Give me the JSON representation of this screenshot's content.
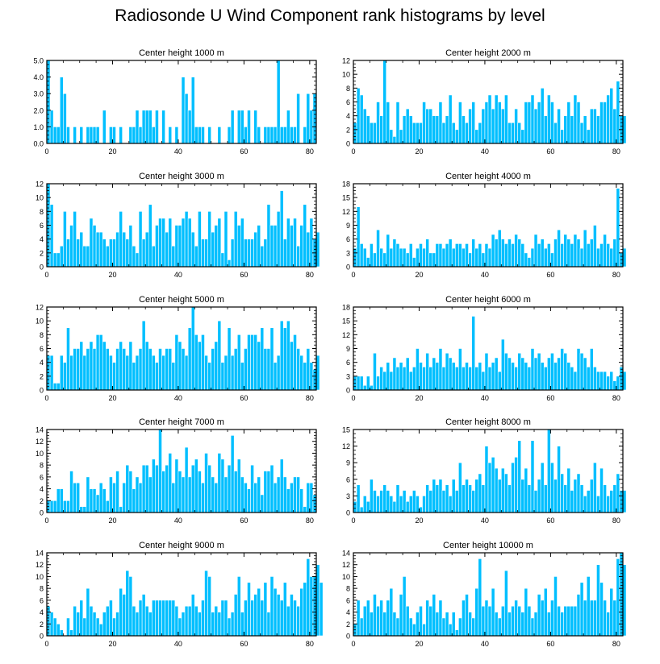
{
  "figure": {
    "title": "Radiosonde U Wind Component rank histograms by level",
    "bar_color": "#00bfff",
    "bar_outline": "#ffffff",
    "axis_color": "#000000"
  },
  "chart_data": [
    {
      "type": "bar",
      "title": "Center height 1000 m",
      "xlim": [
        0,
        82
      ],
      "ylim": [
        0,
        5
      ],
      "yticks": [
        0,
        1,
        2,
        3,
        4,
        5
      ],
      "ytick_labels": [
        "0.0",
        "1.0",
        "2.0",
        "3.0",
        "4.0",
        "5.0"
      ],
      "xticks": [
        0,
        20,
        40,
        60,
        80
      ],
      "values": [
        5,
        2,
        1,
        1,
        4,
        3,
        1,
        0,
        1,
        0,
        1,
        0,
        1,
        1,
        1,
        1,
        0,
        2,
        0,
        1,
        1,
        0,
        1,
        0,
        0,
        1,
        1,
        2,
        1,
        2,
        2,
        2,
        1,
        2,
        0,
        2,
        0,
        1,
        0,
        1,
        0,
        4,
        3,
        2,
        4,
        1,
        1,
        1,
        0,
        1,
        0,
        0,
        1,
        0,
        0,
        1,
        2,
        0,
        2,
        2,
        1,
        2,
        0,
        2,
        1,
        0,
        1,
        1,
        1,
        1,
        5,
        1,
        1,
        2,
        1,
        1,
        3,
        0,
        1,
        3,
        2,
        3
      ]
    },
    {
      "type": "bar",
      "title": "Center height 2000 m",
      "xlim": [
        0,
        82
      ],
      "ylim": [
        0,
        12
      ],
      "yticks": [
        0,
        2,
        4,
        6,
        8,
        10,
        12
      ],
      "ytick_labels": [
        "0",
        "2",
        "4",
        "6",
        "8",
        "10",
        "12"
      ],
      "xticks": [
        0,
        20,
        40,
        60,
        80
      ],
      "values": [
        3,
        8,
        7,
        5,
        4,
        3,
        3,
        6,
        4,
        12,
        6,
        2,
        1,
        6,
        2,
        4,
        5,
        4,
        3,
        3,
        3,
        6,
        5,
        5,
        4,
        4,
        6,
        3,
        4,
        7,
        3,
        2,
        6,
        4,
        3,
        5,
        6,
        2,
        3,
        5,
        6,
        7,
        5,
        7,
        6,
        5,
        7,
        3,
        3,
        5,
        3,
        2,
        6,
        6,
        7,
        5,
        6,
        8,
        4,
        7,
        6,
        3,
        5,
        2,
        4,
        6,
        4,
        7,
        6,
        3,
        4,
        2,
        5,
        5,
        4,
        6,
        6,
        7,
        8,
        5,
        9,
        4,
        4
      ]
    },
    {
      "type": "bar",
      "title": "Center height 3000 m",
      "xlim": [
        0,
        82
      ],
      "ylim": [
        0,
        12
      ],
      "yticks": [
        0,
        2,
        4,
        6,
        8,
        10,
        12
      ],
      "ytick_labels": [
        "0",
        "2",
        "4",
        "6",
        "8",
        "10",
        "12"
      ],
      "xticks": [
        0,
        20,
        40,
        60,
        80
      ],
      "values": [
        12,
        9,
        2,
        2,
        3,
        8,
        4,
        6,
        8,
        4,
        5,
        3,
        3,
        7,
        6,
        5,
        5,
        4,
        3,
        4,
        4,
        5,
        8,
        5,
        4,
        6,
        3,
        2,
        8,
        4,
        5,
        9,
        3,
        6,
        7,
        7,
        5,
        7,
        3,
        6,
        6,
        7,
        8,
        7,
        5,
        3,
        8,
        4,
        4,
        8,
        5,
        6,
        7,
        2,
        8,
        1,
        4,
        8,
        6,
        7,
        4,
        4,
        4,
        5,
        6,
        3,
        4,
        9,
        6,
        6,
        8,
        11,
        4,
        7,
        6,
        7,
        3,
        6,
        9,
        5,
        7,
        4,
        5
      ]
    },
    {
      "type": "bar",
      "title": "Center height 4000 m",
      "xlim": [
        0,
        82
      ],
      "ylim": [
        0,
        18
      ],
      "yticks": [
        0,
        3,
        6,
        9,
        12,
        15,
        18
      ],
      "ytick_labels": [
        "0",
        "3",
        "6",
        "9",
        "12",
        "15",
        "18"
      ],
      "xticks": [
        0,
        20,
        40,
        60,
        80
      ],
      "values": [
        4,
        13,
        5,
        4,
        2,
        5,
        3,
        8,
        4,
        3,
        7,
        4,
        6,
        5,
        4,
        4,
        3,
        5,
        2,
        4,
        5,
        4,
        6,
        3,
        3,
        5,
        5,
        4,
        5,
        6,
        4,
        5,
        5,
        4,
        5,
        3,
        6,
        4,
        5,
        3,
        5,
        4,
        7,
        6,
        8,
        6,
        5,
        6,
        5,
        7,
        6,
        5,
        3,
        2,
        4,
        7,
        5,
        6,
        4,
        5,
        3,
        6,
        8,
        5,
        7,
        6,
        5,
        7,
        6,
        4,
        8,
        5,
        6,
        9,
        4,
        5,
        7,
        5,
        4,
        6,
        17,
        3,
        4
      ]
    },
    {
      "type": "bar",
      "title": "Center height 5000 m",
      "xlim": [
        0,
        82
      ],
      "ylim": [
        0,
        12
      ],
      "yticks": [
        0,
        2,
        4,
        6,
        8,
        10,
        12
      ],
      "ytick_labels": [
        "0",
        "2",
        "4",
        "6",
        "8",
        "10",
        "12"
      ],
      "xticks": [
        0,
        20,
        40,
        60,
        80
      ],
      "values": [
        5,
        5,
        1,
        1,
        5,
        4,
        9,
        5,
        6,
        6,
        7,
        5,
        6,
        7,
        6,
        8,
        8,
        7,
        6,
        5,
        4,
        6,
        7,
        6,
        5,
        7,
        4,
        5,
        6,
        10,
        7,
        6,
        5,
        4,
        6,
        5,
        6,
        6,
        4,
        8,
        7,
        6,
        5,
        9,
        12,
        8,
        7,
        8,
        5,
        4,
        6,
        7,
        10,
        4,
        5,
        9,
        5,
        6,
        8,
        4,
        6,
        8,
        8,
        8,
        7,
        9,
        6,
        6,
        9,
        4,
        5,
        10,
        9,
        10,
        7,
        8,
        6,
        5,
        4,
        6,
        4,
        3,
        5
      ]
    },
    {
      "type": "bar",
      "title": "Center height 6000 m",
      "xlim": [
        0,
        82
      ],
      "ylim": [
        0,
        18
      ],
      "yticks": [
        0,
        3,
        6,
        9,
        12,
        15,
        18
      ],
      "ytick_labels": [
        "0",
        "3",
        "6",
        "9",
        "12",
        "15",
        "18"
      ],
      "xticks": [
        0,
        20,
        40,
        60,
        80
      ],
      "values": [
        3,
        3,
        3,
        1,
        3,
        1,
        8,
        3,
        5,
        4,
        6,
        4,
        7,
        5,
        6,
        5,
        7,
        4,
        5,
        9,
        6,
        5,
        8,
        5,
        7,
        6,
        9,
        5,
        8,
        7,
        6,
        5,
        9,
        5,
        6,
        5,
        16,
        5,
        6,
        4,
        8,
        5,
        6,
        7,
        4,
        11,
        8,
        7,
        6,
        5,
        8,
        7,
        6,
        5,
        9,
        7,
        8,
        6,
        5,
        7,
        8,
        6,
        7,
        9,
        8,
        6,
        5,
        4,
        9,
        8,
        7,
        5,
        9,
        5,
        4,
        4,
        4,
        3,
        4,
        2,
        3,
        5,
        4
      ]
    },
    {
      "type": "bar",
      "title": "Center height 7000 m",
      "xlim": [
        0,
        82
      ],
      "ylim": [
        0,
        14
      ],
      "yticks": [
        0,
        2,
        4,
        6,
        8,
        10,
        12,
        14
      ],
      "ytick_labels": [
        "0",
        "2",
        "4",
        "6",
        "8",
        "10",
        "12",
        "14"
      ],
      "xticks": [
        0,
        20,
        40,
        60,
        80
      ],
      "values": [
        2,
        2,
        2,
        4,
        4,
        2,
        2,
        7,
        5,
        5,
        1,
        1,
        6,
        4,
        4,
        3,
        5,
        4,
        2,
        6,
        5,
        7,
        1,
        5,
        8,
        7,
        4,
        6,
        5,
        8,
        8,
        6,
        9,
        8,
        14,
        7,
        8,
        10,
        5,
        9,
        7,
        6,
        11,
        6,
        8,
        9,
        7,
        5,
        10,
        8,
        6,
        5,
        10,
        9,
        6,
        8,
        13,
        7,
        9,
        6,
        5,
        4,
        8,
        5,
        6,
        3,
        7,
        7,
        8,
        5,
        6,
        9,
        6,
        4,
        5,
        6,
        6,
        4,
        1,
        5,
        5,
        3
      ]
    },
    {
      "type": "bar",
      "title": "Center height 8000 m",
      "xlim": [
        0,
        82
      ],
      "ylim": [
        0,
        15
      ],
      "yticks": [
        0,
        3,
        6,
        9,
        12,
        15
      ],
      "ytick_labels": [
        "0",
        "3",
        "6",
        "9",
        "12",
        "15"
      ],
      "xticks": [
        0,
        20,
        40,
        60,
        80
      ],
      "values": [
        2,
        5,
        1,
        3,
        2,
        6,
        4,
        3,
        4,
        5,
        4,
        3,
        2,
        5,
        3,
        4,
        2,
        3,
        4,
        3,
        1,
        3,
        5,
        4,
        6,
        5,
        6,
        4,
        5,
        3,
        6,
        4,
        9,
        5,
        6,
        5,
        4,
        6,
        7,
        5,
        12,
        9,
        10,
        8,
        6,
        8,
        7,
        5,
        9,
        10,
        13,
        6,
        8,
        5,
        13,
        4,
        6,
        9,
        5,
        15,
        9,
        6,
        12,
        7,
        5,
        8,
        4,
        6,
        7,
        5,
        3,
        4,
        6,
        9,
        3,
        8,
        5,
        3,
        4,
        5,
        7,
        4,
        4
      ]
    },
    {
      "type": "bar",
      "title": "Center height 9000 m",
      "xlim": [
        0,
        82
      ],
      "ylim": [
        0,
        14
      ],
      "yticks": [
        0,
        2,
        4,
        6,
        8,
        10,
        12,
        14
      ],
      "ytick_labels": [
        "0",
        "2",
        "4",
        "6",
        "8",
        "10",
        "12",
        "14"
      ],
      "xticks": [
        0,
        20,
        40,
        60,
        80
      ],
      "values": [
        5,
        4,
        3,
        2,
        1,
        0,
        3,
        1,
        5,
        4,
        6,
        3,
        8,
        5,
        4,
        3,
        2,
        4,
        5,
        6,
        3,
        4,
        8,
        7,
        11,
        10,
        5,
        4,
        6,
        7,
        5,
        4,
        6,
        6,
        6,
        6,
        6,
        6,
        6,
        5,
        3,
        4,
        5,
        5,
        7,
        5,
        4,
        6,
        11,
        10,
        4,
        5,
        4,
        6,
        6,
        3,
        4,
        7,
        10,
        4,
        6,
        9,
        6,
        7,
        8,
        6,
        9,
        4,
        10,
        8,
        7,
        6,
        9,
        5,
        7,
        6,
        5,
        8,
        9,
        13,
        10,
        10,
        12,
        9
      ]
    },
    {
      "type": "bar",
      "title": "Center height 10000 m",
      "xlim": [
        0,
        82
      ],
      "ylim": [
        0,
        14
      ],
      "yticks": [
        0,
        2,
        4,
        6,
        8,
        10,
        12,
        14
      ],
      "ytick_labels": [
        "0",
        "2",
        "4",
        "6",
        "8",
        "10",
        "12",
        "14"
      ],
      "xticks": [
        0,
        20,
        40,
        60,
        80
      ],
      "values": [
        2,
        6,
        3,
        5,
        6,
        4,
        7,
        5,
        6,
        4,
        6,
        8,
        4,
        3,
        7,
        10,
        5,
        3,
        2,
        4,
        5,
        2,
        6,
        5,
        7,
        4,
        6,
        3,
        4,
        2,
        4,
        1,
        3,
        6,
        7,
        4,
        3,
        8,
        13,
        5,
        6,
        5,
        8,
        4,
        3,
        5,
        11,
        4,
        5,
        6,
        5,
        4,
        8,
        5,
        3,
        4,
        7,
        6,
        8,
        4,
        6,
        10,
        5,
        4,
        5,
        5,
        5,
        5,
        7,
        9,
        6,
        10,
        6,
        6,
        12,
        9,
        6,
        4,
        8,
        6,
        13,
        14,
        12
      ]
    }
  ]
}
